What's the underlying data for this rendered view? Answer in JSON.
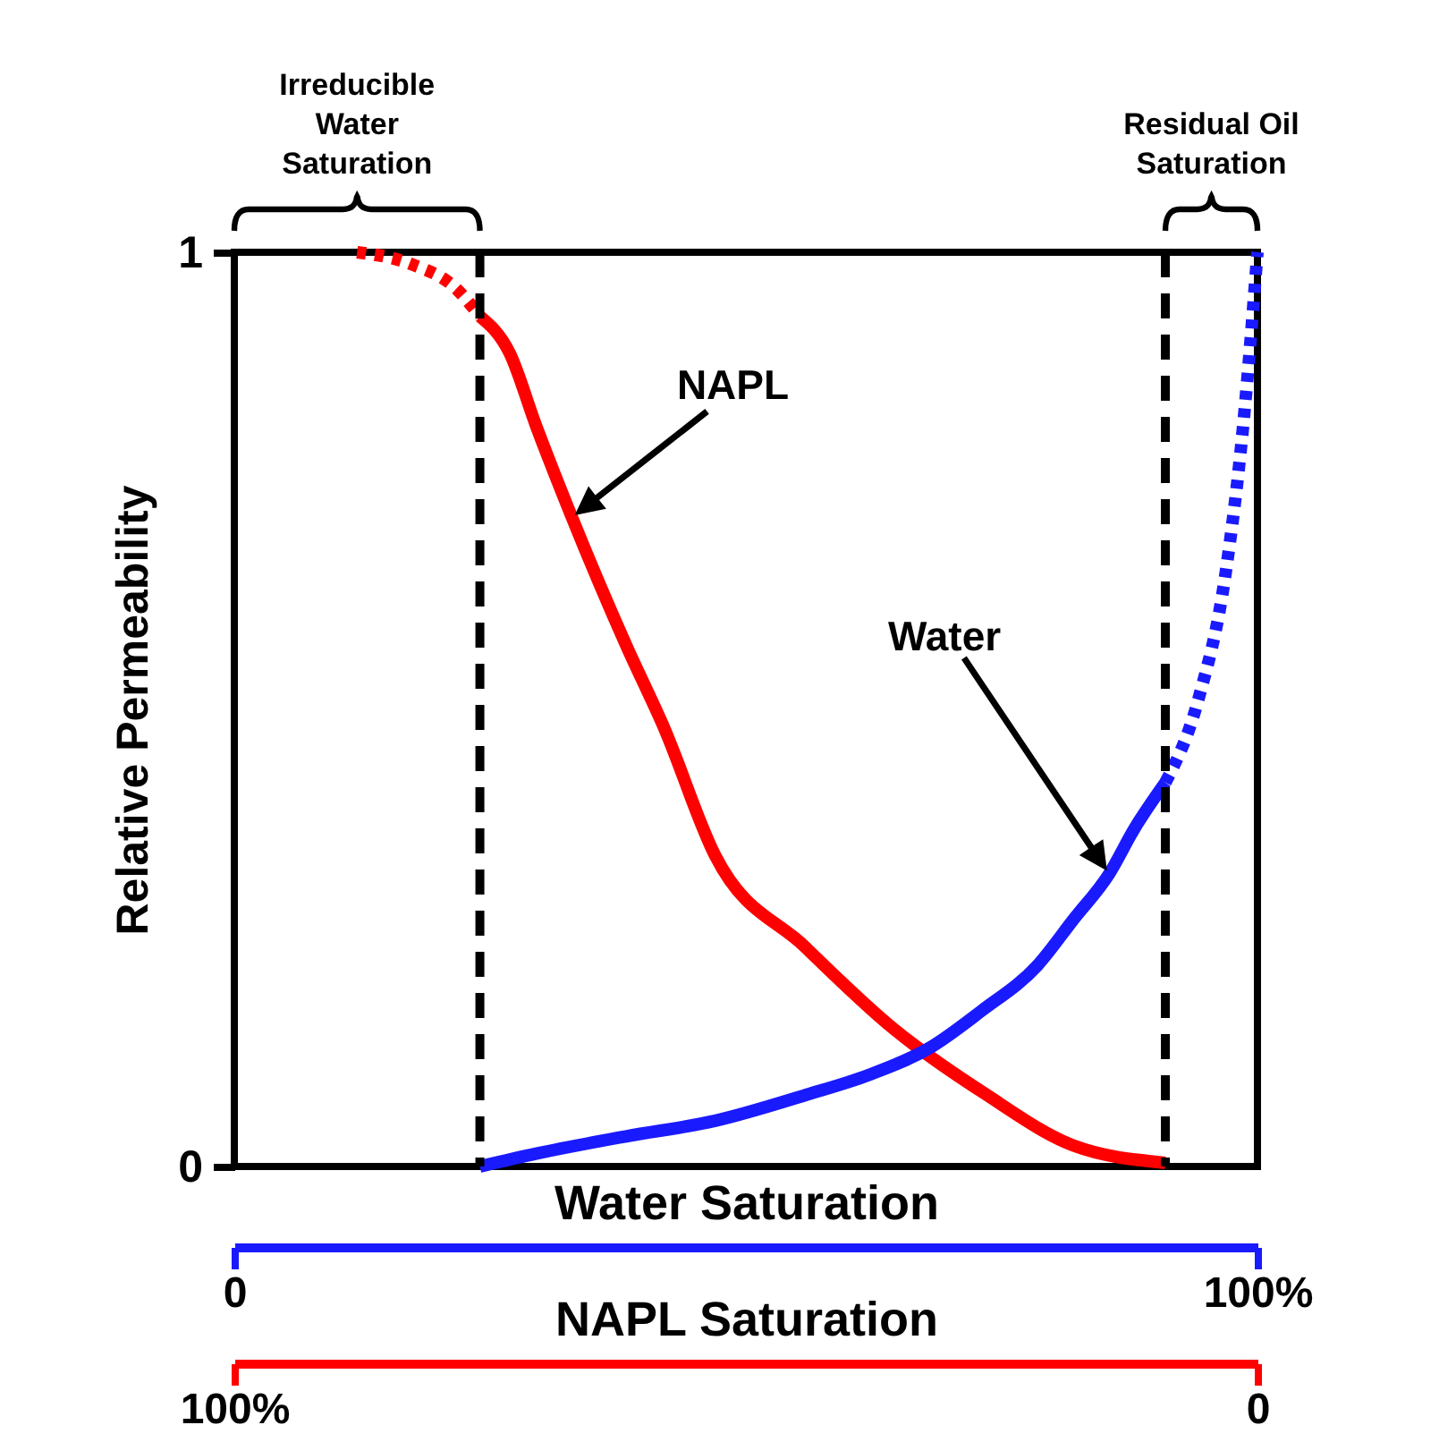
{
  "chart_data": {
    "type": "line",
    "ylabel": "Relative Permeability",
    "xlabel": "Water Saturation",
    "x2label": "NAPL Saturation",
    "xlim": [
      0,
      100
    ],
    "xticks": [
      {
        "value": 0,
        "label": "0"
      },
      {
        "value": 100,
        "label": "100%"
      }
    ],
    "x2lim": [
      100,
      0
    ],
    "x2ticks": [
      {
        "value": 100,
        "label": "100%"
      },
      {
        "value": 0,
        "label": "0"
      }
    ],
    "ylim": [
      0,
      1
    ],
    "yticks": [
      0,
      1
    ],
    "series": [
      {
        "color": "#ff0000",
        "line_style": "dotted",
        "x": [
          12,
          17.3,
          21.7,
          24
        ],
        "values": [
          1,
          0.987,
          0.96,
          0.93
        ]
      },
      {
        "color": "#ff0000",
        "line_style": "solid",
        "x": [
          24,
          26.9,
          29.5,
          33,
          38.3,
          42,
          47,
          55.8,
          64.5,
          73.3,
          82,
          91
        ],
        "values": [
          0.93,
          0.89,
          0.81,
          0.71,
          0.57,
          0.48,
          0.34,
          0.24,
          0.15,
          0.08,
          0.023,
          0.004
        ]
      },
      {
        "color": "#1a1aff",
        "line_style": "solid",
        "x": [
          24,
          29.5,
          38.3,
          47,
          55.8,
          62,
          68,
          73,
          78.5,
          82,
          85.5,
          88,
          91
        ],
        "values": [
          0,
          0.014,
          0.033,
          0.05,
          0.078,
          0.1,
          0.13,
          0.17,
          0.22,
          0.27,
          0.32,
          0.37,
          0.42
        ]
      },
      {
        "color": "#1a1aff",
        "line_style": "dotted",
        "x": [
          91,
          94.2,
          96.9,
          98.6,
          100
        ],
        "values": [
          0.42,
          0.51,
          0.65,
          0.81,
          1
        ]
      }
    ],
    "ref_lines": [
      {
        "axis": "x",
        "value": 24,
        "line_style": "dashed",
        "color": "#000000",
        "label": "Irreducible\nWater\nSaturation"
      },
      {
        "axis": "x",
        "value": 91,
        "line_style": "dashed",
        "color": "#000000",
        "label": "Residual Oil\nSaturation"
      }
    ],
    "annotations": [
      "NAPL",
      "Water"
    ]
  }
}
